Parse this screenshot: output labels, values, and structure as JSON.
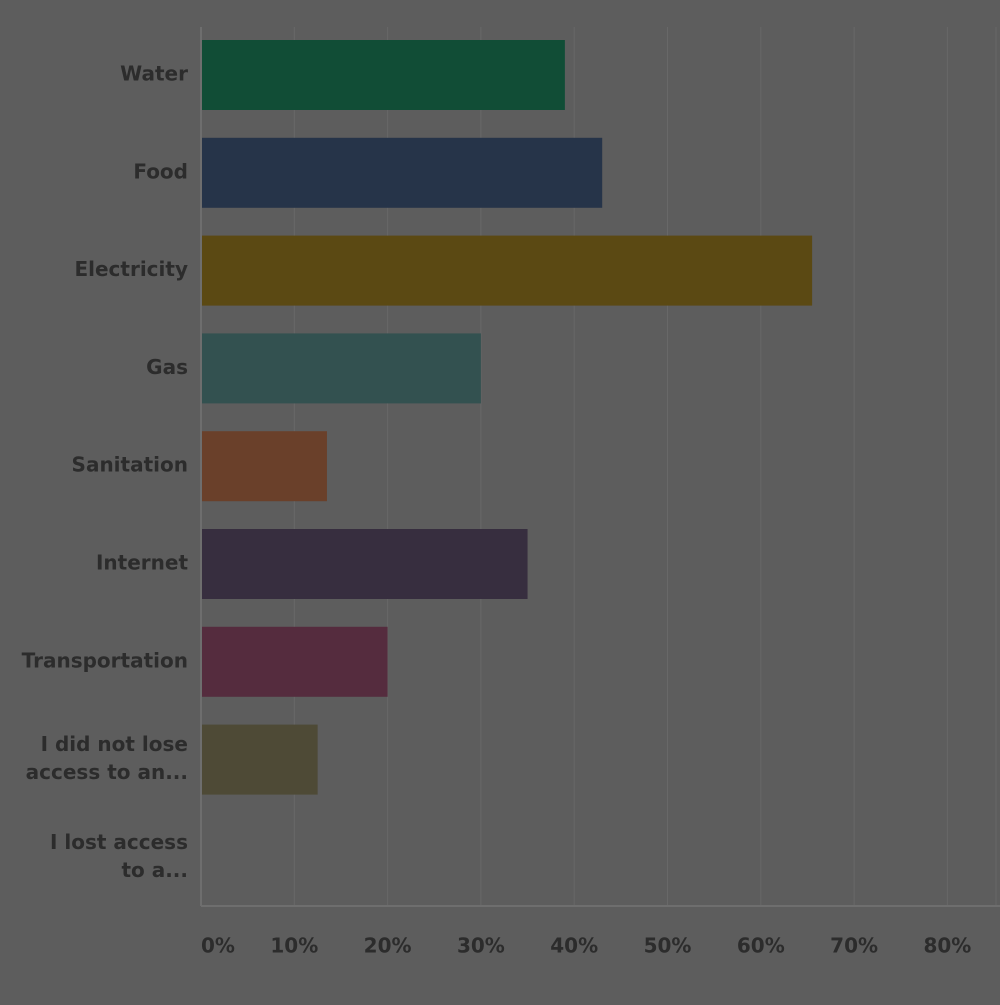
{
  "chart_data": {
    "type": "bar",
    "orientation": "horizontal",
    "categories": [
      [
        "Water"
      ],
      [
        "Food"
      ],
      [
        "Electricity"
      ],
      [
        "Gas"
      ],
      [
        "Sanitation"
      ],
      [
        "Internet"
      ],
      [
        "Transportation"
      ],
      [
        "I did not lose",
        "access to an..."
      ],
      [
        "I lost access",
        "to a..."
      ]
    ],
    "values": [
      39,
      43,
      65.5,
      30,
      13.5,
      35,
      20,
      12.5,
      0
    ],
    "colors": [
      "#114d36",
      "#263449",
      "#5b4913",
      "#335150",
      "#6a402a",
      "#372e3f",
      "#552c3e",
      "#4e4a36",
      "#5d5d5d"
    ],
    "xlim": [
      0,
      85
    ],
    "ticks": [
      "0%",
      "10%",
      "20%",
      "30%",
      "40%",
      "50%",
      "60%",
      "70%",
      "80%"
    ],
    "grid": true,
    "background": "#5d5d5d",
    "gridline_color": "#686868",
    "axis_color": "#6e6e6e",
    "label_color": "#2c2c2c"
  }
}
